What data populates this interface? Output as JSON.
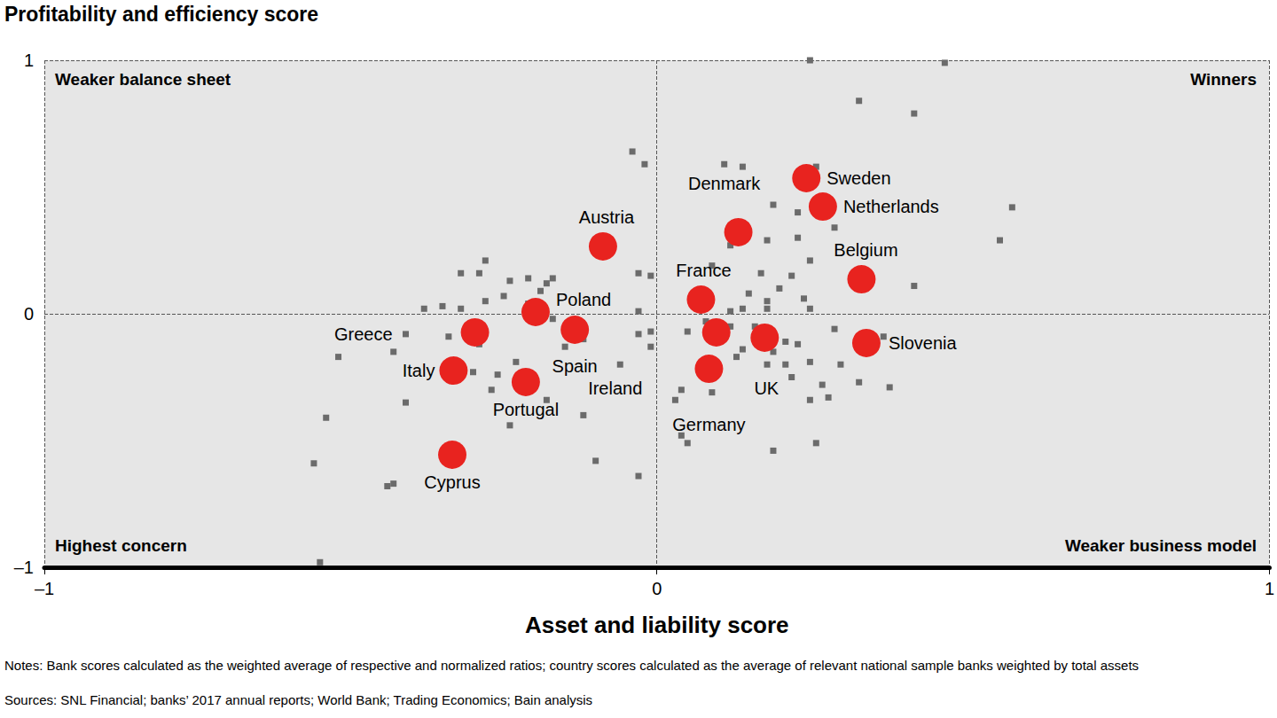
{
  "chart_data": {
    "type": "scatter",
    "ylabel": "Profitability and efficiency score",
    "xlabel": "Asset and liability score",
    "annotations": [
      "Weaker balance sheet",
      "Winners",
      "Highest concern",
      "Weaker business model"
    ],
    "notes": [
      "Notes: Bank scores calculated as the weighted average of respective and normalized ratios; country scores calculated as the average of relevant national sample banks weighted by total assets",
      "Sources: SNL Financial; banks’ 2017 annual reports; World Bank; Trading Economics; Bain analysis"
    ],
    "xlim": [
      -1,
      1
    ],
    "xticks": [
      {
        "value": -1,
        "label": "–1"
      },
      0,
      1
    ],
    "ylim": [
      -1,
      1
    ],
    "yticks": [
      {
        "value": -1,
        "label": "–1"
      },
      0,
      1
    ],
    "grid": true,
    "series": [
      {
        "color": "#6b6b6b",
        "marker": "square",
        "values": [
          [
            0.25,
            1.0
          ],
          [
            0.47,
            0.99
          ],
          [
            0.33,
            0.84
          ],
          [
            0.42,
            0.79
          ],
          [
            -0.04,
            0.64
          ],
          [
            -0.02,
            0.59
          ],
          [
            0.26,
            0.58
          ],
          [
            0.11,
            0.59
          ],
          [
            0.14,
            0.58
          ],
          [
            0.58,
            0.42
          ],
          [
            0.56,
            0.29
          ],
          [
            0.19,
            0.43
          ],
          [
            0.23,
            0.4
          ],
          [
            0.29,
            0.34
          ],
          [
            0.12,
            0.27
          ],
          [
            0.18,
            0.29
          ],
          [
            0.23,
            0.3
          ],
          [
            0.25,
            0.21
          ],
          [
            -0.28,
            0.21
          ],
          [
            -0.32,
            0.16
          ],
          [
            -0.29,
            0.16
          ],
          [
            -0.24,
            0.13
          ],
          [
            -0.21,
            0.14
          ],
          [
            -0.17,
            0.14
          ],
          [
            -0.18,
            0.12
          ],
          [
            -0.19,
            0.09
          ],
          [
            -0.03,
            0.16
          ],
          [
            -0.01,
            0.15
          ],
          [
            0.09,
            0.19
          ],
          [
            0.17,
            0.16
          ],
          [
            0.22,
            0.15
          ],
          [
            0.42,
            0.11
          ],
          [
            0.15,
            0.08
          ],
          [
            0.2,
            0.1
          ],
          [
            0.24,
            0.06
          ],
          [
            0.25,
            0.02
          ],
          [
            0.18,
            0.05
          ],
          [
            0.12,
            0.01
          ],
          [
            0.14,
            0.02
          ],
          [
            0.18,
            0.02
          ],
          [
            -0.35,
            0.03
          ],
          [
            -0.38,
            0.02
          ],
          [
            -0.32,
            0.02
          ],
          [
            -0.28,
            0.05
          ],
          [
            -0.25,
            0.07
          ],
          [
            -0.21,
            0.04
          ],
          [
            -0.17,
            -0.02
          ],
          [
            -0.03,
            0.01
          ],
          [
            -0.03,
            -0.08
          ],
          [
            -0.01,
            -0.07
          ],
          [
            -0.01,
            -0.13
          ],
          [
            0.08,
            -0.03
          ],
          [
            0.05,
            -0.07
          ],
          [
            0.12,
            -0.05
          ],
          [
            0.16,
            -0.05
          ],
          [
            0.21,
            -0.11
          ],
          [
            0.19,
            -0.15
          ],
          [
            0.23,
            -0.12
          ],
          [
            0.29,
            -0.06
          ],
          [
            0.37,
            -0.09
          ],
          [
            -0.41,
            -0.08
          ],
          [
            -0.34,
            -0.09
          ],
          [
            -0.29,
            -0.12
          ],
          [
            -0.43,
            -0.15
          ],
          [
            -0.52,
            -0.17
          ],
          [
            -0.12,
            -0.1
          ],
          [
            -0.15,
            -0.13
          ],
          [
            -0.06,
            -0.2
          ],
          [
            0.14,
            -0.14
          ],
          [
            0.13,
            -0.17
          ],
          [
            0.18,
            -0.2
          ],
          [
            0.21,
            -0.2
          ],
          [
            0.25,
            -0.19
          ],
          [
            0.3,
            -0.2
          ],
          [
            0.22,
            -0.25
          ],
          [
            0.27,
            -0.28
          ],
          [
            0.33,
            -0.27
          ],
          [
            0.38,
            -0.29
          ],
          [
            0.25,
            -0.34
          ],
          [
            0.28,
            -0.33
          ],
          [
            -0.26,
            -0.24
          ],
          [
            -0.23,
            -0.19
          ],
          [
            -0.3,
            -0.23
          ],
          [
            -0.27,
            -0.3
          ],
          [
            -0.18,
            -0.34
          ],
          [
            -0.12,
            -0.4
          ],
          [
            -0.24,
            -0.44
          ],
          [
            -0.41,
            -0.35
          ],
          [
            0.04,
            -0.3
          ],
          [
            0.03,
            -0.34
          ],
          [
            0.09,
            -0.31
          ],
          [
            0.04,
            -0.48
          ],
          [
            0.05,
            -0.51
          ],
          [
            0.19,
            -0.54
          ],
          [
            0.26,
            -0.51
          ],
          [
            -0.54,
            -0.41
          ],
          [
            -0.56,
            -0.59
          ],
          [
            -0.43,
            -0.67
          ],
          [
            -0.44,
            -0.68
          ],
          [
            -0.1,
            -0.58
          ],
          [
            -0.03,
            -0.64
          ],
          [
            -0.55,
            -0.98
          ]
        ]
      },
      {
        "color": "#e8231f",
        "marker": "circle",
        "labels": [
          "Sweden",
          "Netherlands",
          "Denmark",
          "Austria",
          "Belgium",
          "France",
          "Poland",
          "Greece",
          "Spain",
          "Ireland",
          "UK",
          "Slovenia",
          "Italy",
          "Germany",
          "Portugal",
          "Cyprus"
        ],
        "values": [
          [
            0.244,
            0.535
          ],
          [
            0.271,
            0.423
          ],
          [
            0.133,
            0.322
          ],
          [
            -0.088,
            0.266
          ],
          [
            0.334,
            0.136
          ],
          [
            0.072,
            0.056
          ],
          [
            -0.198,
            0.007
          ],
          [
            -0.297,
            -0.073
          ],
          [
            -0.134,
            -0.063
          ],
          [
            0.097,
            -0.073
          ],
          [
            0.176,
            -0.094
          ],
          [
            0.342,
            -0.115
          ],
          [
            -0.332,
            -0.224
          ],
          [
            0.085,
            -0.217
          ],
          [
            -0.214,
            -0.269
          ],
          [
            -0.334,
            -0.556
          ]
        ]
      }
    ]
  }
}
